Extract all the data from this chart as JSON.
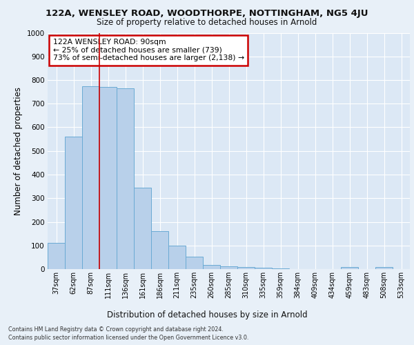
{
  "title_line1": "122A, WENSLEY ROAD, WOODTHORPE, NOTTINGHAM, NG5 4JU",
  "title_line2": "Size of property relative to detached houses in Arnold",
  "xlabel": "Distribution of detached houses by size in Arnold",
  "ylabel": "Number of detached properties",
  "categories": [
    "37sqm",
    "62sqm",
    "87sqm",
    "111sqm",
    "136sqm",
    "161sqm",
    "186sqm",
    "211sqm",
    "235sqm",
    "260sqm",
    "285sqm",
    "310sqm",
    "335sqm",
    "359sqm",
    "384sqm",
    "409sqm",
    "434sqm",
    "459sqm",
    "483sqm",
    "508sqm",
    "533sqm"
  ],
  "values": [
    110,
    560,
    775,
    770,
    765,
    345,
    160,
    100,
    52,
    17,
    12,
    8,
    6,
    4,
    1,
    0,
    0,
    10,
    0,
    10,
    0
  ],
  "bar_color": "#b8d0ea",
  "bar_edge_color": "#6aaad4",
  "annotation_text": "122A WENSLEY ROAD: 90sqm\n← 25% of detached houses are smaller (739)\n73% of semi-detached houses are larger (2,138) →",
  "vline_color": "#cc0000",
  "vline_x": 2.5,
  "background_color": "#e8f0f8",
  "plot_bg_color": "#dce8f5",
  "grid_color": "#ffffff",
  "footer_line1": "Contains HM Land Registry data © Crown copyright and database right 2024.",
  "footer_line2": "Contains public sector information licensed under the Open Government Licence v3.0.",
  "ylim": [
    0,
    1000
  ],
  "yticks": [
    0,
    100,
    200,
    300,
    400,
    500,
    600,
    700,
    800,
    900,
    1000
  ]
}
